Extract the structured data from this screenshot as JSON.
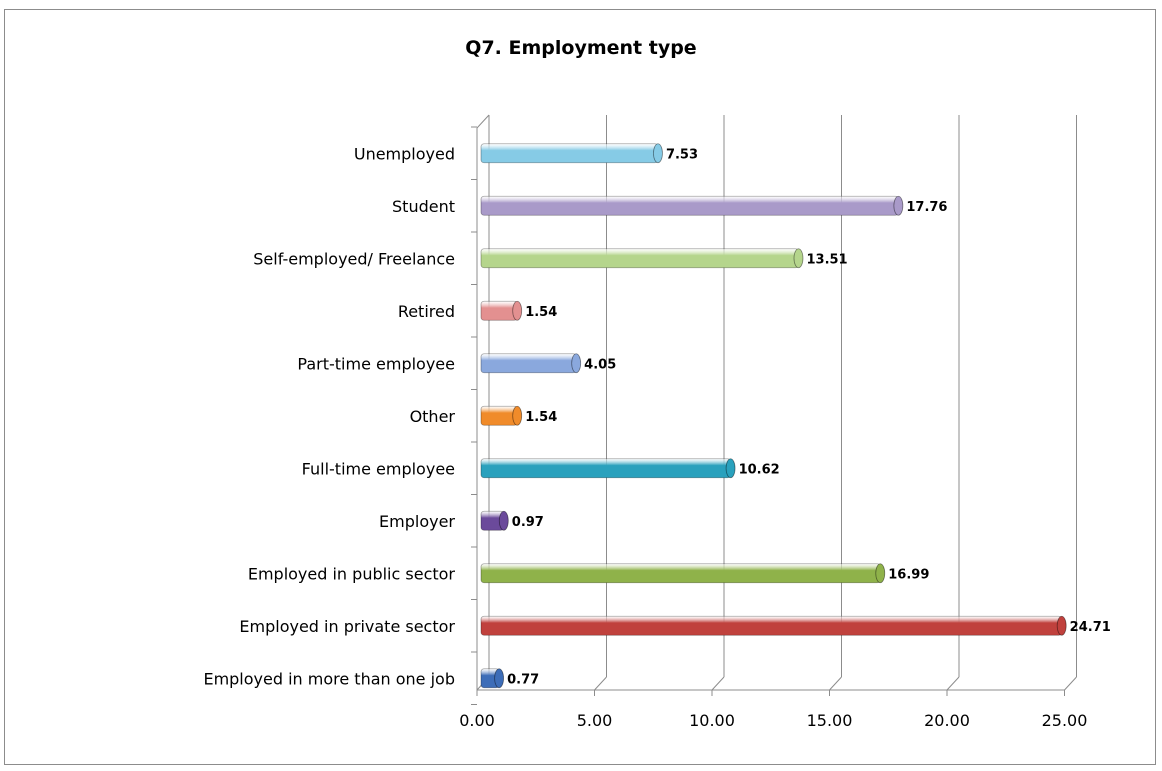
{
  "chart_data": {
    "type": "bar",
    "orientation": "horizontal",
    "title": "Q7. Employment type",
    "xlabel": "",
    "ylabel": "",
    "xlim": [
      0,
      25
    ],
    "x_ticks": [
      "0.00",
      "5.00",
      "10.00",
      "15.00",
      "20.00",
      "25.00"
    ],
    "grid": true,
    "legend": "none",
    "categories": [
      "Employed in more than one job",
      "Employed in private sector",
      "Employed in public sector",
      "Employer",
      "Full-time employee",
      "Other",
      "Part-time employee",
      "Retired",
      "Self-employed/ Freelance",
      "Student",
      "Unemployed"
    ],
    "values": [
      0.77,
      24.71,
      16.99,
      0.97,
      10.62,
      1.54,
      4.05,
      1.54,
      13.51,
      17.76,
      7.53
    ],
    "value_labels": [
      "0.77",
      "24.71",
      "16.99",
      "0.97",
      "10.62",
      "1.54",
      "4.05",
      "1.54",
      "13.51",
      "17.76",
      "7.53"
    ],
    "colors": [
      "#3d6db8",
      "#c0413d",
      "#8fb24a",
      "#6b4a9b",
      "#2aa1bd",
      "#f08b2a",
      "#8aa8dd",
      "#e39090",
      "#b5d58c",
      "#a99ac9",
      "#86cbe6"
    ]
  }
}
